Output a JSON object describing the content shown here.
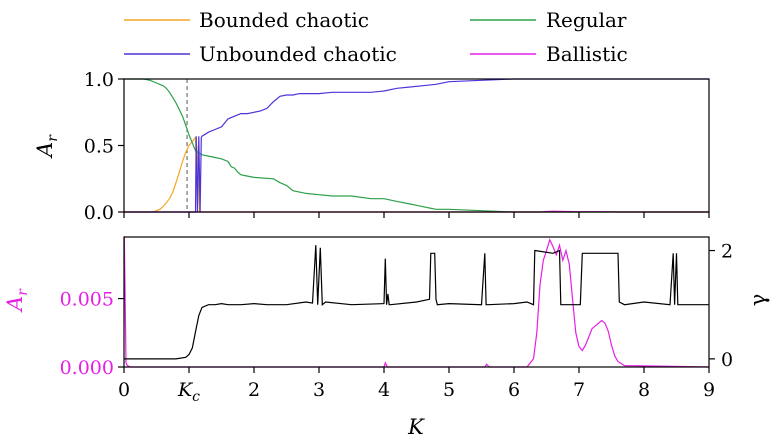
{
  "chart_data": [
    {
      "type": "line",
      "panel": "top",
      "ylabel": "A_r",
      "xlim": [
        0,
        9
      ],
      "ylim": [
        0,
        1
      ],
      "ytick_labels": [
        "0.0",
        "0.5",
        "1.0"
      ],
      "yticks": [
        0,
        0.5,
        1.0
      ],
      "xticks": [
        0,
        1,
        2,
        3,
        4,
        5,
        6,
        7,
        8,
        9
      ],
      "critical_line_x": 0.97,
      "legend": {
        "placement": "top-outside",
        "columns": 2
      },
      "series": [
        {
          "name": "Bounded chaotic",
          "color": "#f5a623",
          "x": [
            0,
            0.45,
            0.5,
            0.55,
            0.6,
            0.65,
            0.7,
            0.75,
            0.8,
            0.85,
            0.9,
            0.95,
            1.0,
            1.05,
            1.1,
            1.12,
            1.14,
            1.16,
            1.2,
            1.3,
            2,
            3,
            4,
            5,
            6,
            7,
            8,
            9
          ],
          "y": [
            0,
            0,
            0.01,
            0.02,
            0.04,
            0.07,
            0.1,
            0.15,
            0.22,
            0.3,
            0.38,
            0.45,
            0.5,
            0.53,
            0.56,
            0.3,
            0.5,
            0.0,
            0,
            0,
            0,
            0,
            0,
            0,
            0,
            0,
            0,
            0
          ]
        },
        {
          "name": "Regular",
          "color": "#2ca048",
          "x": [
            0,
            0.3,
            0.4,
            0.5,
            0.6,
            0.65,
            0.7,
            0.75,
            0.8,
            0.85,
            0.9,
            0.95,
            1.0,
            1.05,
            1.1,
            1.2,
            1.3,
            1.4,
            1.5,
            1.6,
            1.65,
            1.7,
            1.75,
            1.8,
            1.9,
            2.0,
            2.3,
            2.4,
            2.5,
            2.6,
            2.8,
            3.0,
            3.2,
            3.5,
            3.8,
            4.0,
            4.2,
            4.4,
            4.5,
            4.6,
            4.7,
            4.8,
            5.0,
            5.5,
            6.0,
            6.5,
            7.0,
            8.0,
            9.0
          ],
          "y": [
            1.0,
            1.0,
            0.99,
            0.97,
            0.95,
            0.93,
            0.9,
            0.86,
            0.82,
            0.77,
            0.72,
            0.65,
            0.58,
            0.52,
            0.46,
            0.43,
            0.42,
            0.41,
            0.4,
            0.38,
            0.34,
            0.33,
            0.3,
            0.28,
            0.27,
            0.26,
            0.25,
            0.22,
            0.2,
            0.16,
            0.14,
            0.13,
            0.12,
            0.12,
            0.1,
            0.1,
            0.08,
            0.06,
            0.05,
            0.04,
            0.03,
            0.02,
            0.02,
            0.01,
            0.0,
            0.0,
            0.0,
            0.0,
            0.0
          ]
        },
        {
          "name": "Unbounded chaotic",
          "color": "#4b35d8",
          "x": [
            0,
            1.1,
            1.11,
            1.13,
            1.15,
            1.17,
            1.19,
            1.2,
            1.3,
            1.4,
            1.5,
            1.6,
            1.7,
            1.8,
            1.9,
            2.0,
            2.1,
            2.2,
            2.3,
            2.4,
            2.5,
            2.6,
            2.7,
            2.8,
            2.9,
            3.0,
            3.2,
            3.5,
            3.8,
            4.0,
            4.2,
            4.4,
            4.6,
            4.8,
            5.0,
            5.5,
            6.0,
            6.5,
            7.0,
            8.0,
            9.0
          ],
          "y": [
            0,
            0,
            0.57,
            0.0,
            0.57,
            0.0,
            0.56,
            0.57,
            0.6,
            0.62,
            0.64,
            0.7,
            0.72,
            0.74,
            0.74,
            0.75,
            0.76,
            0.78,
            0.83,
            0.87,
            0.88,
            0.88,
            0.89,
            0.89,
            0.89,
            0.89,
            0.9,
            0.9,
            0.9,
            0.91,
            0.93,
            0.94,
            0.95,
            0.96,
            0.98,
            0.99,
            1.0,
            1.0,
            1.0,
            1.0,
            1.0
          ]
        },
        {
          "name": "Ballistic",
          "color": "#e61ee6",
          "x": [
            0,
            6.4,
            6.5,
            6.6,
            6.7,
            6.8,
            6.9,
            7.0,
            7.2,
            7.4,
            7.6,
            9.0
          ],
          "y": [
            0,
            0,
            0.004,
            0.006,
            0.005,
            0.004,
            0.003,
            0.002,
            0.002,
            0.002,
            0,
            0
          ]
        }
      ]
    },
    {
      "type": "line",
      "panel": "bottom",
      "xlabel": "K",
      "ylabel": "A_r",
      "y2label": "γ",
      "xlim": [
        0,
        9
      ],
      "xticks": [
        0,
        1,
        2,
        3,
        4,
        5,
        6,
        7,
        8,
        9
      ],
      "xtick_labels": [
        "0",
        "K_c",
        "2",
        "3",
        "4",
        "5",
        "6",
        "7",
        "8",
        "9"
      ],
      "ylim": [
        0,
        0.0095
      ],
      "yticks": [
        0,
        0.005
      ],
      "ytick_labels": [
        "0.000",
        "0.005"
      ],
      "y2lim": [
        -0.15,
        2.25
      ],
      "y2ticks": [
        0,
        2
      ],
      "y2tick_labels": [
        "0",
        "2"
      ],
      "series": [
        {
          "name": "A_r (Ballistic)",
          "axis": "left",
          "color": "#e61ee6",
          "x": [
            0,
            0.005,
            0.03,
            0.05,
            0.1,
            4.0,
            4.02,
            4.05,
            4.1,
            5.55,
            5.58,
            5.62,
            6.2,
            6.3,
            6.35,
            6.4,
            6.45,
            6.5,
            6.55,
            6.6,
            6.65,
            6.7,
            6.75,
            6.8,
            6.85,
            6.9,
            6.95,
            7.0,
            7.05,
            7.1,
            7.15,
            7.2,
            7.25,
            7.3,
            7.35,
            7.4,
            7.45,
            7.5,
            7.55,
            7.6,
            7.7,
            9.0
          ],
          "y": [
            0.0095,
            0.0095,
            0.0003,
            0.0001,
            0.0,
            0.0,
            0.0003,
            0.0,
            0.0,
            0.0,
            0.0002,
            0.0,
            0.0,
            0.0006,
            0.0025,
            0.006,
            0.0078,
            0.0085,
            0.0093,
            0.0088,
            0.0082,
            0.0089,
            0.0078,
            0.0085,
            0.0075,
            0.005,
            0.0025,
            0.0015,
            0.0012,
            0.0016,
            0.0022,
            0.0028,
            0.003,
            0.0032,
            0.0034,
            0.0032,
            0.0026,
            0.0016,
            0.0008,
            0.0004,
            0.0001,
            0.0
          ]
        },
        {
          "name": "γ",
          "axis": "right",
          "color": "#000000",
          "x": [
            0,
            0.8,
            0.95,
            1.0,
            1.05,
            1.1,
            1.15,
            1.2,
            1.3,
            1.4,
            1.5,
            1.6,
            1.8,
            2.0,
            2.2,
            2.5,
            2.8,
            2.9,
            2.95,
            2.98,
            3.02,
            3.05,
            3.1,
            3.5,
            4.0,
            4.02,
            4.04,
            4.06,
            4.08,
            4.1,
            4.5,
            4.7,
            4.72,
            4.78,
            4.8,
            4.82,
            5.0,
            5.5,
            5.55,
            5.57,
            5.6,
            6.0,
            6.2,
            6.3,
            6.32,
            6.6,
            6.7,
            6.72,
            7.02,
            7.05,
            7.6,
            7.62,
            7.7,
            8.0,
            8.4,
            8.45,
            8.47,
            8.5,
            8.52,
            9.0
          ],
          "y": [
            0.0,
            0.0,
            0.03,
            0.08,
            0.2,
            0.5,
            0.8,
            0.95,
            1.0,
            1.0,
            1.02,
            1.0,
            1.0,
            1.02,
            1.0,
            1.0,
            1.05,
            1.03,
            2.1,
            1.0,
            2.05,
            1.0,
            1.05,
            1.0,
            1.02,
            1.85,
            1.0,
            1.2,
            1.0,
            1.0,
            1.05,
            1.1,
            1.95,
            1.95,
            1.1,
            1.0,
            1.02,
            1.0,
            1.95,
            1.0,
            1.0,
            1.02,
            1.05,
            1.0,
            2.0,
            1.95,
            2.0,
            1.0,
            1.0,
            1.95,
            1.95,
            1.05,
            1.0,
            1.05,
            1.0,
            1.95,
            1.0,
            1.95,
            1.0,
            1.0
          ]
        }
      ]
    }
  ],
  "text": {
    "legend_bounded": "Bounded chaotic",
    "legend_unbounded": "Unbounded chaotic",
    "legend_regular": "Regular",
    "legend_ballistic": "Ballistic",
    "top_ylabel_main": "A",
    "top_ylabel_sub": "r",
    "bottom_ylabel_main": "A",
    "bottom_ylabel_sub": "r",
    "y2label": "γ",
    "xlabel": "K",
    "kc_main": "K",
    "kc_sub": "c"
  },
  "colors": {
    "bounded": "#f5a623",
    "unbounded": "#4b35d8",
    "regular": "#2ca048",
    "ballistic": "#e61ee6",
    "gamma": "#000000"
  }
}
